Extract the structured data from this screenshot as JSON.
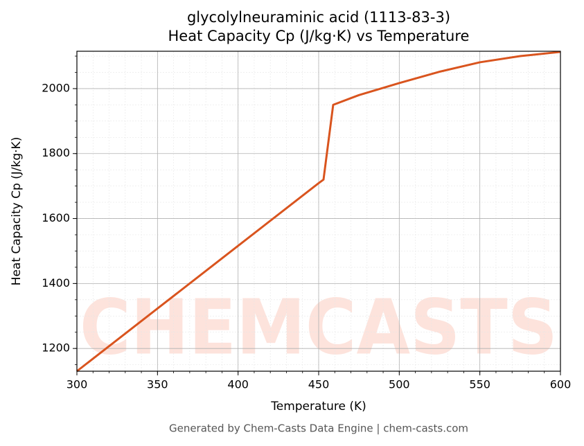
{
  "chart_data": {
    "type": "line",
    "title": "glycolylneuraminic acid (1113-83-3)",
    "subtitle": "Heat Capacity Cp (J/kg·K) vs Temperature",
    "x_label": "Temperature (K)",
    "y_label": "Heat Capacity Cp (J/kg·K)",
    "watermark": "CHEMCASTS",
    "footer": "Generated by Chem-Casts Data Engine | chem-casts.com",
    "x": [
      300,
      350,
      400,
      450,
      453,
      459,
      475,
      500,
      525,
      550,
      575,
      600
    ],
    "series": [
      {
        "name": "Cp",
        "color": "#d9541e",
        "values": [
          1130,
          1323,
          1516,
          1709,
          1720,
          1950,
          1980,
          2017,
          2052,
          2081,
          2100,
          2113
        ]
      }
    ],
    "xlim": [
      300,
      600
    ],
    "xticks": [
      300,
      350,
      400,
      450,
      500,
      550,
      600
    ],
    "ylim": [
      1130,
      2115
    ],
    "yticks": [
      1200,
      1400,
      1600,
      1800,
      2000
    ],
    "grid": true
  }
}
